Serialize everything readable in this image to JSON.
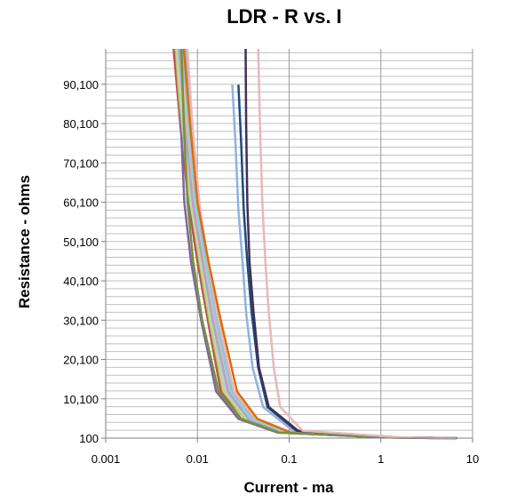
{
  "chart_data": {
    "type": "line",
    "title": "LDR - R vs. I",
    "xlabel": "Current - ma",
    "ylabel": "Resistance - ohms",
    "x_scale": "log",
    "xlim": [
      0.001,
      10
    ],
    "ylim": [
      100,
      99100
    ],
    "x_ticks": [
      "0.001",
      "0.01",
      "0.1",
      "1",
      "10"
    ],
    "y_ticks": [
      "100",
      "10,100",
      "20,100",
      "30,100",
      "40,100",
      "50,100",
      "60,100",
      "70,100",
      "80,100",
      "90,100"
    ],
    "grid": {
      "horizontal_step": 2000,
      "vertical_at_decades": true
    },
    "legend": "none",
    "series": [
      {
        "color": "#c0504d",
        "x": [
          0.0055,
          0.0065,
          0.008,
          0.01,
          0.013,
          0.018,
          0.03,
          0.08,
          1.0,
          5.0
        ],
        "y": [
          99100,
          80000,
          60000,
          45000,
          30000,
          12000,
          5000,
          1500,
          300,
          100
        ]
      },
      {
        "color": "#4f81bd",
        "x": [
          0.006,
          0.0068,
          0.0082,
          0.011,
          0.014,
          0.02,
          0.035,
          0.09,
          1.2,
          6.5
        ],
        "y": [
          99100,
          80000,
          60000,
          45000,
          30000,
          12000,
          5000,
          1500,
          300,
          100
        ]
      },
      {
        "color": "#9bbb59",
        "x": [
          0.0058,
          0.0066,
          0.0085,
          0.0105,
          0.0135,
          0.019,
          0.033,
          0.085,
          1.1,
          5.5
        ],
        "y": [
          99100,
          80000,
          60000,
          45000,
          30000,
          12000,
          5000,
          1500,
          300,
          100
        ]
      },
      {
        "color": "#8064a2",
        "x": [
          0.0062,
          0.0066,
          0.0072,
          0.0085,
          0.011,
          0.016,
          0.028,
          0.075,
          1.0,
          4.0
        ],
        "y": [
          99100,
          80000,
          60000,
          45000,
          30000,
          12000,
          5000,
          1500,
          300,
          100
        ]
      },
      {
        "color": "#4bacc6",
        "x": [
          0.0063,
          0.0072,
          0.0088,
          0.0112,
          0.0145,
          0.021,
          0.037,
          0.095,
          1.3,
          6.8
        ],
        "y": [
          99100,
          80000,
          60000,
          45000,
          30000,
          12000,
          5000,
          1500,
          300,
          100
        ]
      },
      {
        "color": "#f79646",
        "x": [
          0.007,
          0.008,
          0.0098,
          0.0125,
          0.017,
          0.025,
          0.042,
          0.1,
          1.3,
          6.0
        ],
        "y": [
          99100,
          80000,
          60000,
          45000,
          30000,
          12000,
          5000,
          1500,
          300,
          100
        ]
      },
      {
        "color": "#f2b6b4",
        "x": [
          0.0068,
          0.0076,
          0.0092,
          0.012,
          0.015,
          0.022,
          0.038,
          0.09,
          1.1,
          5.0
        ],
        "y": [
          99100,
          80000,
          60000,
          45000,
          30000,
          12000,
          5000,
          1500,
          300,
          100
        ]
      },
      {
        "color": "#b7dde8",
        "x": [
          0.0065,
          0.0074,
          0.009,
          0.0115,
          0.0148,
          0.021,
          0.036,
          0.088,
          1.2,
          5.8
        ],
        "y": [
          99100,
          80000,
          60000,
          45000,
          30000,
          12000,
          5000,
          1500,
          300,
          100
        ]
      },
      {
        "color": "#d7e4bd",
        "x": [
          0.0072,
          0.0082,
          0.0098,
          0.012,
          0.016,
          0.023,
          0.04,
          0.095,
          1.3,
          6.2
        ],
        "y": [
          99100,
          80000,
          60000,
          45000,
          30000,
          12000,
          5000,
          1500,
          300,
          100
        ]
      },
      {
        "color": "#ccc1d9",
        "x": [
          0.006,
          0.007,
          0.0087,
          0.0108,
          0.014,
          0.02,
          0.034,
          0.086,
          1.1,
          5.2
        ],
        "y": [
          99100,
          80000,
          60000,
          45000,
          30000,
          12000,
          5000,
          1500,
          300,
          100
        ]
      },
      {
        "color": "#95b3d7",
        "x": [
          0.0075,
          0.0085,
          0.01,
          0.0125,
          0.0165,
          0.024,
          0.041,
          0.098,
          1.3,
          6.0
        ],
        "y": [
          99100,
          80000,
          60000,
          45000,
          30000,
          12000,
          5000,
          1500,
          300,
          100
        ]
      },
      {
        "color": "#fac08f",
        "x": [
          0.0066,
          0.0075,
          0.0091,
          0.0118,
          0.0152,
          0.022,
          0.037,
          0.089,
          1.2,
          5.6
        ],
        "y": [
          99100,
          80000,
          60000,
          45000,
          30000,
          12000,
          5000,
          1500,
          300,
          100
        ]
      },
      {
        "color": "#e6b9b8",
        "x": [
          0.0078,
          0.0088,
          0.0105,
          0.013,
          0.017,
          0.025,
          0.043,
          0.1,
          1.35,
          6.3
        ],
        "y": [
          99100,
          80000,
          60000,
          45000,
          30000,
          12000,
          5000,
          1500,
          300,
          100
        ]
      },
      {
        "color": "#c4d79b",
        "x": [
          0.0059,
          0.0068,
          0.0084,
          0.0107,
          0.0138,
          0.0195,
          0.034,
          0.085,
          1.1,
          5.4
        ],
        "y": [
          99100,
          80000,
          60000,
          45000,
          30000,
          12000,
          5000,
          1500,
          300,
          100
        ]
      },
      {
        "color": "#b3a2c7",
        "x": [
          0.0064,
          0.0073,
          0.0089,
          0.0114,
          0.0147,
          0.0215,
          0.036,
          0.087,
          1.15,
          5.7
        ],
        "y": [
          99100,
          80000,
          60000,
          45000,
          30000,
          12000,
          5000,
          1500,
          300,
          100
        ]
      },
      {
        "color": "#93cddd",
        "x": [
          0.0069,
          0.0079,
          0.0095,
          0.0122,
          0.0158,
          0.023,
          0.039,
          0.093,
          1.25,
          5.9
        ],
        "y": [
          99100,
          80000,
          60000,
          45000,
          30000,
          12000,
          5000,
          1500,
          300,
          100
        ]
      },
      {
        "color": "#e26b0a",
        "x": [
          0.0071,
          0.0083,
          0.01,
          0.0132,
          0.018,
          0.027,
          0.045,
          0.105,
          1.4,
          6.5
        ],
        "y": [
          99100,
          80000,
          60000,
          45000,
          30000,
          12000,
          5000,
          1500,
          300,
          100
        ]
      },
      {
        "color": "#76923c",
        "x": [
          0.0067,
          0.0071,
          0.0078,
          0.009,
          0.0113,
          0.017,
          0.03,
          0.078,
          1.0,
          4.5
        ],
        "y": [
          99100,
          80000,
          60000,
          45000,
          30000,
          12000,
          5000,
          1500,
          300,
          100
        ]
      },
      {
        "color": "#8db3e2",
        "x": [
          0.024,
          0.026,
          0.028,
          0.031,
          0.034,
          0.04,
          0.052,
          0.11,
          1.4,
          6.6
        ],
        "y": [
          90000,
          75000,
          58000,
          45000,
          32000,
          18000,
          8000,
          2000,
          300,
          100
        ]
      },
      {
        "color": "#1f497d",
        "x": [
          0.028,
          0.03,
          0.032,
          0.035,
          0.039,
          0.046,
          0.058,
          0.12,
          1.5,
          6.7
        ],
        "y": [
          90000,
          75000,
          58000,
          45000,
          32000,
          18000,
          8000,
          2000,
          300,
          100
        ]
      },
      {
        "color": "#3f3151",
        "x": [
          0.0335,
          0.034,
          0.035,
          0.037,
          0.041,
          0.047,
          0.06,
          0.125,
          1.5,
          6.5
        ],
        "y": [
          99100,
          80000,
          60000,
          45000,
          32000,
          18000,
          8000,
          2000,
          300,
          100
        ]
      },
      {
        "color": "#e6b9b8",
        "x": [
          0.046,
          0.048,
          0.051,
          0.055,
          0.06,
          0.068,
          0.08,
          0.14,
          1.6,
          6.6
        ],
        "y": [
          99100,
          80000,
          60000,
          45000,
          32000,
          18000,
          8000,
          2000,
          300,
          100
        ]
      }
    ]
  }
}
